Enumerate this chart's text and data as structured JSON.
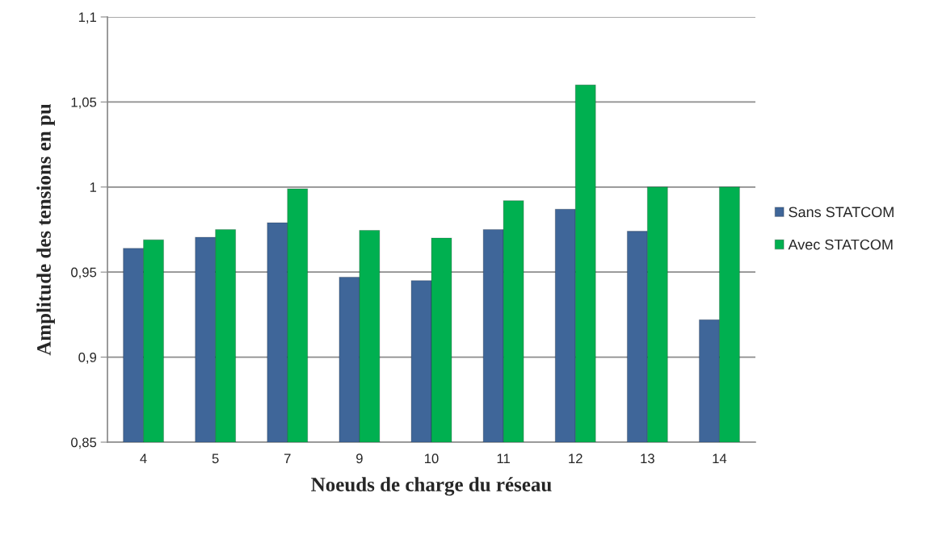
{
  "chart_data": {
    "type": "bar",
    "xlabel": "Noeuds de charge du réseau",
    "ylabel": "Amplitude des tensions en pu",
    "categories": [
      "4",
      "5",
      "7",
      "9",
      "10",
      "11",
      "12",
      "13",
      "14"
    ],
    "series": [
      {
        "name": "Sans STATCOM",
        "color": "#3f6699",
        "values": [
          0.964,
          0.9705,
          0.979,
          0.947,
          0.945,
          0.975,
          0.987,
          0.974,
          0.922
        ]
      },
      {
        "name": "Avec STATCOM",
        "color": "#00b050",
        "values": [
          0.969,
          0.975,
          0.999,
          0.9745,
          0.97,
          0.992,
          1.06,
          1.0,
          1.0
        ]
      }
    ],
    "ylim": [
      0.85,
      1.1
    ],
    "yticks": [
      {
        "value": 0.85,
        "label": "0,85"
      },
      {
        "value": 0.9,
        "label": "0,9"
      },
      {
        "value": 0.95,
        "label": "0,95"
      },
      {
        "value": 1.0,
        "label": "1"
      },
      {
        "value": 1.05,
        "label": "1,05"
      },
      {
        "value": 1.1,
        "label": "1,1"
      }
    ],
    "grid": "y",
    "legend": "right"
  }
}
